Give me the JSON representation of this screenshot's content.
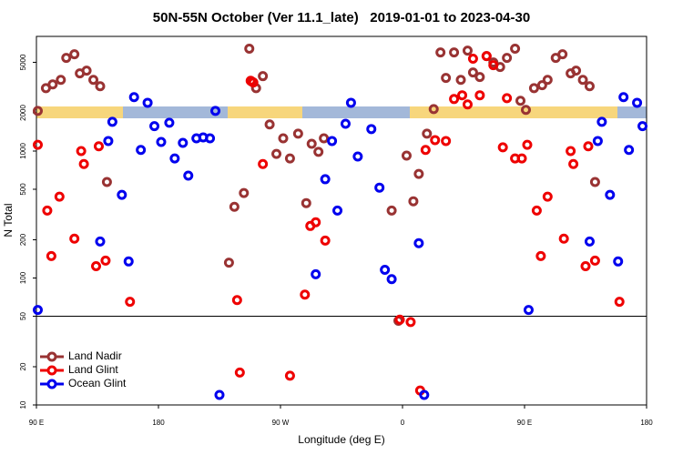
{
  "chart_data": {
    "type": "scatter",
    "title": "50N-55N October (Ver 11.1_late)   2019-01-01 to 2023-04-30",
    "x_label": "Longitude (deg E)",
    "y_label": "N Total",
    "log_y": true,
    "reference_line": 50,
    "legend": "lower-left",
    "xlim": [
      90,
      540
    ],
    "xticks": [
      {
        "value": 90,
        "label": "90 E"
      },
      180,
      {
        "value": 270,
        "label": "90 W"
      },
      {
        "value": 360,
        "label": "0"
      },
      {
        "value": 450,
        "label": "90 E"
      },
      {
        "value": 540,
        "label": "180"
      }
    ],
    "ylim": [
      10,
      8000
    ],
    "yticks": [
      10,
      20,
      50,
      100,
      200,
      500,
      1000,
      2000,
      5000
    ],
    "series": [
      {
        "name": "Land Nadir",
        "color": "#993333",
        "x": [
          91,
          97,
          102,
          108,
          112,
          118,
          122,
          127,
          132,
          137,
          142,
          232,
          236,
          243,
          247,
          249,
          252,
          257,
          262,
          267,
          272,
          277,
          283,
          289,
          293,
          298,
          302,
          352,
          357,
          363,
          368,
          372,
          378,
          383,
          388,
          392,
          398,
          403,
          408,
          412,
          417,
          422,
          427,
          432,
          437,
          443,
          447,
          451,
          457,
          463,
          467,
          473,
          478,
          484,
          488,
          493,
          498,
          502
        ],
        "values": [
          2070,
          3130,
          3350,
          3640,
          5420,
          5790,
          4090,
          4300,
          3640,
          3240,
          570,
          132,
          364,
          467,
          6400,
          3520,
          3130,
          3890,
          1620,
          950,
          1260,
          875,
          1370,
          389,
          1140,
          985,
          1260,
          340,
          46,
          920,
          402,
          660,
          1370,
          2140,
          5980,
          3770,
          5980,
          3640,
          6180,
          4160,
          3830,
          5600,
          4990,
          4590,
          5420,
          6400,
          2490,
          2110,
          3130,
          3300,
          3640,
          5420,
          5790,
          4090,
          4300,
          3640,
          3240,
          570
        ]
      },
      {
        "name": "Land Glint",
        "color": "#ee0000",
        "x": [
          91,
          98,
          101,
          107,
          118,
          123,
          125,
          134,
          136,
          141,
          159,
          238,
          240,
          248,
          250,
          257,
          277,
          288,
          292,
          296,
          303,
          358,
          366,
          373,
          377,
          384,
          392,
          398,
          404,
          408,
          412,
          417,
          422,
          427,
          434,
          437,
          443,
          448,
          452,
          459,
          462,
          467,
          479,
          484,
          486,
          495,
          497,
          502,
          520
        ],
        "values": [
          1120,
          340,
          149,
          437,
          204,
          1000,
          790,
          124,
          1090,
          137,
          65,
          67,
          18,
          3580,
          3470,
          790,
          17,
          74,
          257,
          275,
          197,
          47,
          45,
          13,
          1020,
          1220,
          1200,
          2570,
          2750,
          2330,
          5340,
          2750,
          5600,
          4750,
          1070,
          2610,
          875,
          875,
          1120,
          340,
          149,
          437,
          204,
          1000,
          790,
          124,
          1090,
          137,
          65
        ]
      },
      {
        "name": "Ocean Glint",
        "color": "#0000ee",
        "x": [
          91,
          137,
          143,
          146,
          153,
          158,
          162,
          167,
          172,
          177,
          182,
          188,
          192,
          198,
          202,
          208,
          213,
          218,
          222,
          225,
          296,
          303,
          308,
          312,
          318,
          322,
          327,
          337,
          343,
          347,
          352,
          372,
          376,
          453,
          498,
          504,
          507,
          513,
          519,
          523,
          527,
          533,
          537
        ],
        "values": [
          56,
          194,
          1200,
          1700,
          452,
          135,
          2660,
          1020,
          2400,
          1570,
          1180,
          1670,
          875,
          1160,
          640,
          1260,
          1280,
          1260,
          2070,
          12,
          107,
          600,
          1200,
          340,
          1640,
          2400,
          905,
          1490,
          515,
          116,
          98,
          188,
          12,
          56,
          194,
          1200,
          1700,
          452,
          135,
          2660,
          1020,
          2400,
          1570
        ]
      }
    ]
  }
}
